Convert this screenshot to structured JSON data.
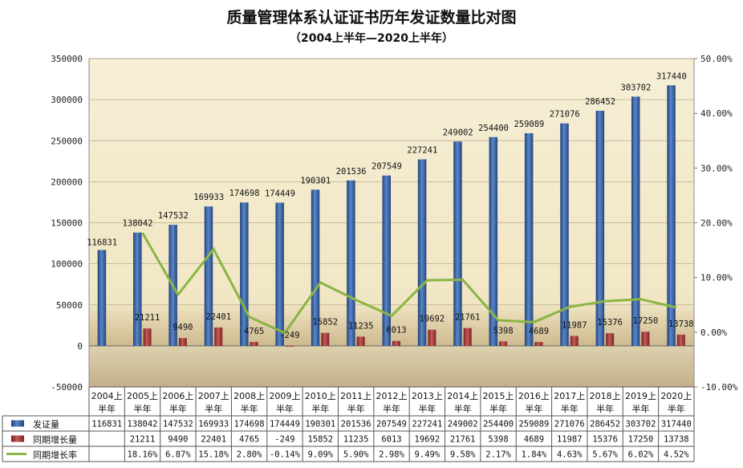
{
  "chart_data": {
    "type": "bar",
    "title": "质量管理体系认证证书历年发证数量比对图",
    "subtitle": "（2004上半年—2020上半年）",
    "categories": [
      [
        "2004上",
        "半年"
      ],
      [
        "2005上",
        "半年"
      ],
      [
        "2006上",
        "半年"
      ],
      [
        "2007上",
        "半年"
      ],
      [
        "2008上",
        "半年"
      ],
      [
        "2009上",
        "半年"
      ],
      [
        "2010上",
        "半年"
      ],
      [
        "2011上",
        "半年"
      ],
      [
        "2012上",
        "半年"
      ],
      [
        "2013上",
        "半年"
      ],
      [
        "2014上",
        "半年"
      ],
      [
        "2015上",
        "半年"
      ],
      [
        "2016上",
        "半年"
      ],
      [
        "2017上",
        "半年"
      ],
      [
        "2018上",
        "半年"
      ],
      [
        "2019上",
        "半年"
      ],
      [
        "2020上",
        "半年"
      ]
    ],
    "series": [
      {
        "name": "发证量",
        "type": "bar",
        "axis": "left",
        "color": "#2e5b9e",
        "values": [
          116831,
          138042,
          147532,
          169933,
          174698,
          174449,
          190301,
          201536,
          207549,
          227241,
          249002,
          254400,
          259089,
          271076,
          286452,
          303702,
          317440
        ],
        "table_labels": [
          "116831",
          "138042",
          "147532",
          "169933",
          "174698",
          "174449",
          "190301",
          "201536",
          "207549",
          "227241",
          "249002",
          "254400",
          "259089",
          "271076",
          "286452",
          "303702",
          "317440"
        ]
      },
      {
        "name": "同期增长量",
        "type": "bar",
        "axis": "left",
        "color": "#a83232",
        "values": [
          null,
          21211,
          9490,
          22401,
          4765,
          -249,
          15852,
          11235,
          6013,
          19692,
          21761,
          5398,
          4689,
          11987,
          15376,
          17250,
          13738
        ],
        "table_labels": [
          "",
          "21211",
          "9490",
          "22401",
          "4765",
          "-249",
          "15852",
          "11235",
          "6013",
          "19692",
          "21761",
          "5398",
          "4689",
          "11987",
          "15376",
          "17250",
          "13738"
        ]
      },
      {
        "name": "同期增长率",
        "type": "line",
        "axis": "right",
        "color": "#8ab544",
        "values": [
          null,
          18.16,
          6.87,
          15.18,
          2.8,
          -0.14,
          9.09,
          5.9,
          2.98,
          9.49,
          9.58,
          2.17,
          1.84,
          4.63,
          5.67,
          6.02,
          4.52
        ],
        "table_labels": [
          "",
          "18.16%",
          "6.87%",
          "15.18%",
          "2.80%",
          "-0.14%",
          "9.09%",
          "5.90%",
          "2.98%",
          "9.49%",
          "9.58%",
          "2.17%",
          "1.84%",
          "4.63%",
          "5.67%",
          "6.02%",
          "4.52%"
        ]
      }
    ],
    "y_left": {
      "min": -50000,
      "max": 350000,
      "step": 50000,
      "ticks": [
        "-50000",
        "0",
        "50000",
        "100000",
        "150000",
        "200000",
        "250000",
        "300000",
        "350000"
      ]
    },
    "y_right": {
      "min": -10,
      "max": 50,
      "step": 10,
      "ticks": [
        "-10.00%",
        "0.00%",
        "10.00%",
        "20.00%",
        "30.00%",
        "40.00%",
        "50.00%"
      ]
    },
    "grid": true,
    "legend": "data-table-bottom"
  }
}
